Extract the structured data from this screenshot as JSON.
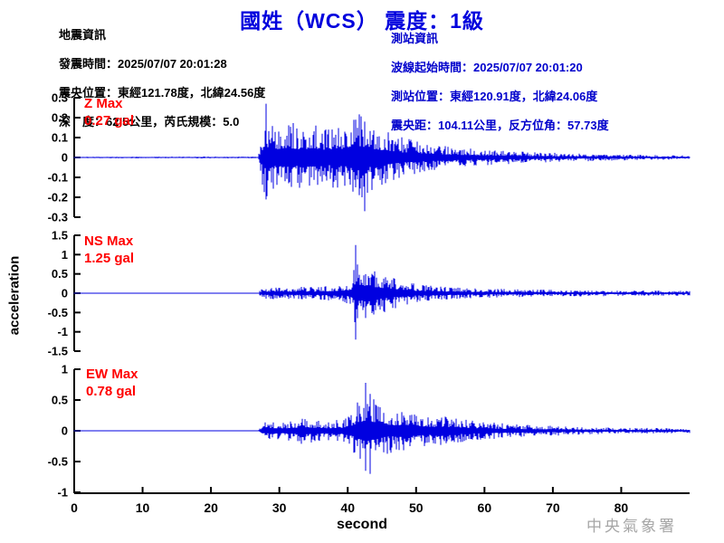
{
  "header": {
    "title": "國姓（WCS） 震度：1級"
  },
  "earthquake_info": {
    "heading": "地震資訊",
    "origin_time": "發震時間：2025/07/07 20:01:28",
    "epicenter": "震央位置：東經121.78度，北緯24.56度",
    "depth_magnitude": "深　度：62.5公里，芮氏規模：5.0"
  },
  "station_info": {
    "heading": "測站資訊",
    "wave_start_time": "波線起始時間：2025/07/07 20:01:20",
    "station_location": "測站位置：東經120.91度，北緯24.06度",
    "distance_azimuth": "震央距：104.11公里，反方位角：57.73度"
  },
  "footer": {
    "watermark": "中央氣象署"
  },
  "colors": {
    "title": "#0000dd",
    "station_info_text": "#0000cc",
    "earthquake_info_text": "#000000",
    "waveform": "#0000e0",
    "max_label": "#ff0000",
    "axis": "#000000",
    "watermark": "#a6a6a6"
  },
  "chart_data": {
    "type": "line",
    "ylabel": "acceleration",
    "x": {
      "label": "second",
      "min": 0,
      "max": 90,
      "ticks": [
        0,
        10,
        20,
        30,
        40,
        50,
        60,
        70,
        80
      ]
    },
    "signal_onset_s": 27,
    "panels": [
      {
        "component": "Z",
        "max_label": "Z Max",
        "max_value": "0.27 gal",
        "max_gal": 0.27,
        "peak_time_s": 28,
        "ylim": [
          -0.3,
          0.3
        ],
        "yticks": [
          0.3,
          0.2,
          0.1,
          0,
          -0.1,
          -0.2,
          -0.3
        ],
        "envelope": [
          [
            0,
            0.004
          ],
          [
            26.9,
            0.005
          ],
          [
            27.3,
            0.1
          ],
          [
            28,
            0.22
          ],
          [
            29.5,
            0.16
          ],
          [
            31,
            0.19
          ],
          [
            33,
            0.16
          ],
          [
            35,
            0.18
          ],
          [
            37,
            0.15
          ],
          [
            38.5,
            0.17
          ],
          [
            40.5,
            0.18
          ],
          [
            41.5,
            0.23
          ],
          [
            43,
            0.19
          ],
          [
            44.5,
            0.15
          ],
          [
            46,
            0.13
          ],
          [
            48,
            0.1
          ],
          [
            50,
            0.085
          ],
          [
            53,
            0.065
          ],
          [
            56,
            0.05
          ],
          [
            60,
            0.04
          ],
          [
            64,
            0.032
          ],
          [
            68,
            0.026
          ],
          [
            72,
            0.022
          ],
          [
            76,
            0.018
          ],
          [
            80,
            0.015
          ],
          [
            85,
            0.012
          ],
          [
            90,
            0.01
          ]
        ],
        "peaks": [
          {
            "t": 28,
            "up": 0.27,
            "down": 0.2
          },
          {
            "t": 42.5,
            "up": 0.18,
            "down": 0.27
          }
        ]
      },
      {
        "component": "NS",
        "max_label": "NS Max",
        "max_value": "1.25 gal",
        "max_gal": 1.25,
        "peak_time_s": 41.2,
        "ylim": [
          -1.5,
          1.5
        ],
        "yticks": [
          1.5,
          1,
          0.5,
          0,
          -0.5,
          -1,
          -1.5
        ],
        "envelope": [
          [
            0,
            0.006
          ],
          [
            26.9,
            0.007
          ],
          [
            27.4,
            0.13
          ],
          [
            29,
            0.17
          ],
          [
            31,
            0.15
          ],
          [
            33,
            0.17
          ],
          [
            35,
            0.16
          ],
          [
            37,
            0.19
          ],
          [
            39,
            0.23
          ],
          [
            40.4,
            0.3
          ],
          [
            41.2,
            0.9
          ],
          [
            42,
            0.7
          ],
          [
            43,
            0.85
          ],
          [
            44,
            0.62
          ],
          [
            45,
            0.55
          ],
          [
            46.5,
            0.42
          ],
          [
            48,
            0.32
          ],
          [
            50,
            0.24
          ],
          [
            52,
            0.2
          ],
          [
            55,
            0.16
          ],
          [
            58,
            0.13
          ],
          [
            61,
            0.12
          ],
          [
            65,
            0.1
          ],
          [
            70,
            0.09
          ],
          [
            75,
            0.08
          ],
          [
            80,
            0.075
          ],
          [
            85,
            0.07
          ],
          [
            90,
            0.065
          ]
        ],
        "peaks": [
          {
            "t": 41.2,
            "up": 1.25,
            "down": 1.2
          }
        ]
      },
      {
        "component": "EW",
        "max_label": "EW Max",
        "max_value": "0.78 gal",
        "max_gal": 0.78,
        "peak_time_s": 42.6,
        "ylim": [
          -1,
          1
        ],
        "yticks": [
          1,
          0.5,
          0,
          -0.5,
          -1
        ],
        "envelope": [
          [
            0,
            0.005
          ],
          [
            26.9,
            0.006
          ],
          [
            27.5,
            0.14
          ],
          [
            29,
            0.17
          ],
          [
            30.5,
            0.15
          ],
          [
            32,
            0.18
          ],
          [
            33.5,
            0.22
          ],
          [
            35,
            0.19
          ],
          [
            36.5,
            0.16
          ],
          [
            38,
            0.17
          ],
          [
            39.5,
            0.2
          ],
          [
            40.8,
            0.35
          ],
          [
            41.8,
            0.55
          ],
          [
            42.6,
            0.66
          ],
          [
            43.4,
            0.6
          ],
          [
            44.3,
            0.5
          ],
          [
            45.5,
            0.38
          ],
          [
            47,
            0.35
          ],
          [
            48.5,
            0.38
          ],
          [
            50,
            0.3
          ],
          [
            52,
            0.26
          ],
          [
            54,
            0.24
          ],
          [
            56,
            0.21
          ],
          [
            58,
            0.18
          ],
          [
            60,
            0.15
          ],
          [
            63,
            0.12
          ],
          [
            66,
            0.1
          ],
          [
            70,
            0.08
          ],
          [
            75,
            0.06
          ],
          [
            80,
            0.05
          ],
          [
            85,
            0.045
          ],
          [
            90,
            0.04
          ]
        ],
        "peaks": [
          {
            "t": 42.6,
            "up": 0.78,
            "down": 0.65
          },
          {
            "t": 43.3,
            "up": 0.6,
            "down": 0.7
          }
        ]
      }
    ]
  }
}
